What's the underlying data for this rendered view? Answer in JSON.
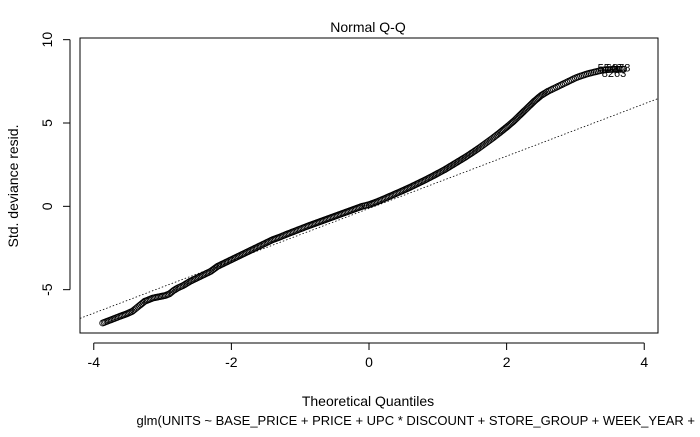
{
  "chart_data": {
    "type": "scatter",
    "title": "Normal Q-Q",
    "xlabel": "Theoretical Quantiles",
    "ylabel": "Std. deviance resid.",
    "caption": "glm(UNITS ~ BASE_PRICE + PRICE + UPC * DISCOUNT + STORE_GROUP + WEEK_YEAR +",
    "xlim": [
      -4.2,
      4.2
    ],
    "ylim": [
      -7.6,
      10.1
    ],
    "x_ticks": [
      -4,
      -2,
      0,
      2,
      4
    ],
    "x_tick_labels": [
      "-4",
      "-2",
      "0",
      "2",
      "4"
    ],
    "y_ticks": [
      -5,
      0,
      5,
      10
    ],
    "y_tick_labels": [
      "-5",
      "0",
      "5",
      "10"
    ],
    "grid": false,
    "reference_line": {
      "slope": 1.57,
      "intercept": -0.13,
      "style": "dotted"
    },
    "point_style": "open-circle",
    "series": [
      {
        "x": [
          -3.87,
          -3.62,
          -3.52,
          -3.44,
          -3.38,
          -3.32,
          -3.26,
          -3.2,
          -3.14,
          -3.08,
          -3.02,
          -2.96,
          -2.9,
          -2.84,
          -2.78,
          -2.7,
          -2.6,
          -2.5,
          -2.4,
          -2.3,
          -2.2,
          -2.1,
          -2.0,
          -1.9,
          -1.8,
          -1.7,
          -1.6,
          -1.5,
          -1.4,
          -1.3,
          -1.2,
          -1.1,
          -1.0,
          -0.9,
          -0.8,
          -0.7,
          -0.6,
          -0.5,
          -0.4,
          -0.3,
          -0.2,
          -0.1,
          0.0,
          0.1,
          0.2,
          0.3,
          0.4,
          0.5,
          0.6,
          0.7,
          0.8,
          0.9,
          1.0,
          1.1,
          1.2,
          1.3,
          1.4,
          1.5,
          1.6,
          1.7,
          1.8,
          1.9,
          2.0,
          2.1,
          2.2,
          2.3,
          2.4,
          2.5,
          2.6,
          2.65,
          2.7,
          2.75,
          2.8,
          2.85,
          2.9,
          2.95,
          3.0,
          3.05,
          3.1,
          3.15,
          3.2,
          3.25,
          3.3,
          3.35,
          3.4,
          3.45,
          3.5,
          3.55,
          3.6,
          3.65,
          3.7
        ],
        "y": [
          -7.0,
          -6.6,
          -6.45,
          -6.3,
          -6.1,
          -5.9,
          -5.7,
          -5.6,
          -5.5,
          -5.45,
          -5.4,
          -5.35,
          -5.25,
          -5.05,
          -4.9,
          -4.75,
          -4.5,
          -4.3,
          -4.1,
          -3.9,
          -3.6,
          -3.4,
          -3.2,
          -3.0,
          -2.8,
          -2.6,
          -2.4,
          -2.2,
          -2.0,
          -1.85,
          -1.68,
          -1.52,
          -1.36,
          -1.2,
          -1.05,
          -0.9,
          -0.75,
          -0.6,
          -0.45,
          -0.3,
          -0.15,
          0.0,
          0.1,
          0.25,
          0.42,
          0.6,
          0.78,
          0.96,
          1.15,
          1.35,
          1.55,
          1.76,
          1.98,
          2.2,
          2.45,
          2.7,
          2.95,
          3.22,
          3.5,
          3.8,
          4.1,
          4.42,
          4.75,
          5.1,
          5.5,
          5.9,
          6.3,
          6.65,
          6.9,
          7.0,
          7.1,
          7.2,
          7.3,
          7.4,
          7.5,
          7.6,
          7.7,
          7.78,
          7.85,
          7.92,
          7.98,
          8.03,
          8.08,
          8.13,
          8.18,
          8.2,
          8.21,
          8.22,
          8.22,
          8.22,
          8.23
        ]
      }
    ],
    "point_labels": [
      {
        "x": 3.5,
        "y": 8.32,
        "text": "5540"
      },
      {
        "x": 3.62,
        "y": 8.32,
        "text": "6278"
      },
      {
        "x": 3.56,
        "y": 8.0,
        "text": "8263"
      }
    ]
  }
}
